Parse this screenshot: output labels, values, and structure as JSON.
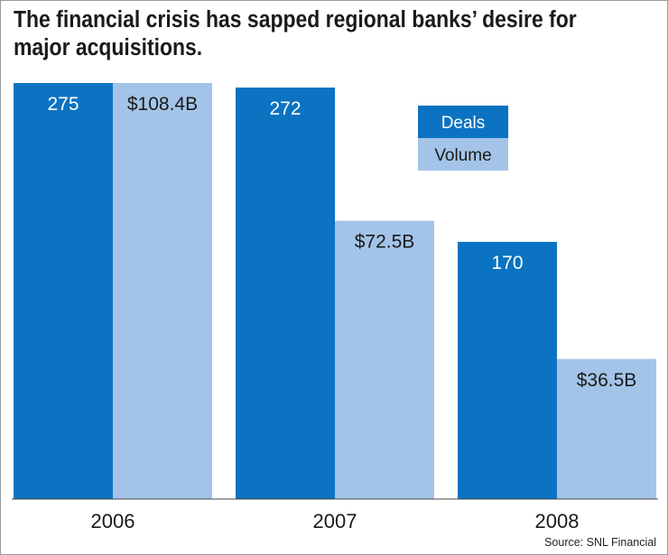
{
  "chart_data": {
    "type": "bar",
    "title": "The financial crisis has sapped regional banks’ desire for major acquisitions.",
    "categories": [
      "2006",
      "2007",
      "2008"
    ],
    "series": [
      {
        "name": "Deals",
        "values": [
          275,
          272,
          170
        ],
        "labels": [
          "275",
          "272",
          "170"
        ],
        "color": "#0b73c1",
        "label_color": "#ffffff"
      },
      {
        "name": "Volume",
        "values": [
          108.4,
          72.5,
          36.5
        ],
        "labels": [
          "$108.4B",
          "$72.5B",
          "$36.5B"
        ],
        "color": "#a3c4e8",
        "label_color": "#1a1a1a"
      }
    ],
    "source": "Source: SNL Financial",
    "legend": "top-right",
    "grid": false,
    "axes_visible": false
  }
}
